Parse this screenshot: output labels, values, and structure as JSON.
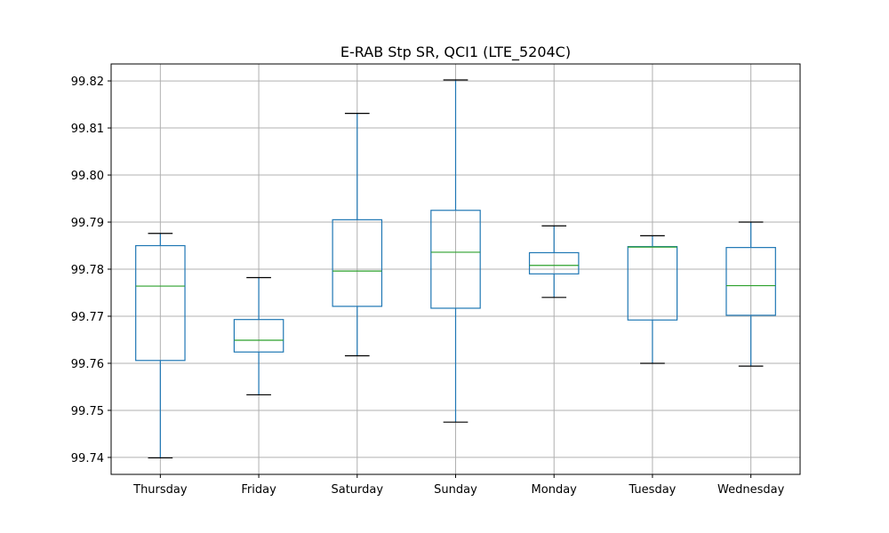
{
  "chart_data": {
    "type": "box",
    "title": "E-RAB Stp SR, QCI1 (LTE_5204C)",
    "xlabel": "",
    "ylabel": "",
    "ylim": [
      99.7364,
      99.8236
    ],
    "grid": true,
    "yticks": [
      "99.74",
      "99.75",
      "99.76",
      "99.77",
      "99.78",
      "99.79",
      "99.80",
      "99.81",
      "99.82"
    ],
    "categories": [
      "Thursday",
      "Friday",
      "Saturday",
      "Sunday",
      "Monday",
      "Tuesday",
      "Wednesday"
    ],
    "boxes": [
      {
        "label": "Thursday",
        "whislo": 99.7399,
        "q1": 99.7606,
        "med": 99.7764,
        "q3": 99.785,
        "whishi": 99.7876
      },
      {
        "label": "Friday",
        "whislo": 99.7533,
        "q1": 99.7624,
        "med": 99.7649,
        "q3": 99.7693,
        "whishi": 99.7782
      },
      {
        "label": "Saturday",
        "whislo": 99.7616,
        "q1": 99.7721,
        "med": 99.7796,
        "q3": 99.7905,
        "whishi": 99.8131
      },
      {
        "label": "Sunday",
        "whislo": 99.7475,
        "q1": 99.7717,
        "med": 99.7836,
        "q3": 99.7925,
        "whishi": 99.8202
      },
      {
        "label": "Monday",
        "whislo": 99.774,
        "q1": 99.779,
        "med": 99.7808,
        "q3": 99.7835,
        "whishi": 99.7892
      },
      {
        "label": "Tuesday",
        "whislo": 99.76,
        "q1": 99.7692,
        "med": 99.7847,
        "q3": 99.7848,
        "whishi": 99.7871
      },
      {
        "label": "Wednesday",
        "whislo": 99.7594,
        "q1": 99.7702,
        "med": 99.7765,
        "q3": 99.7846,
        "whishi": 99.79
      }
    ],
    "colors": {
      "box": "#1f77b4",
      "median": "#2ca02c",
      "whisker": "#1f77b4",
      "cap": "#000000",
      "grid": "#b0b0b0",
      "axes": "#000000"
    }
  }
}
